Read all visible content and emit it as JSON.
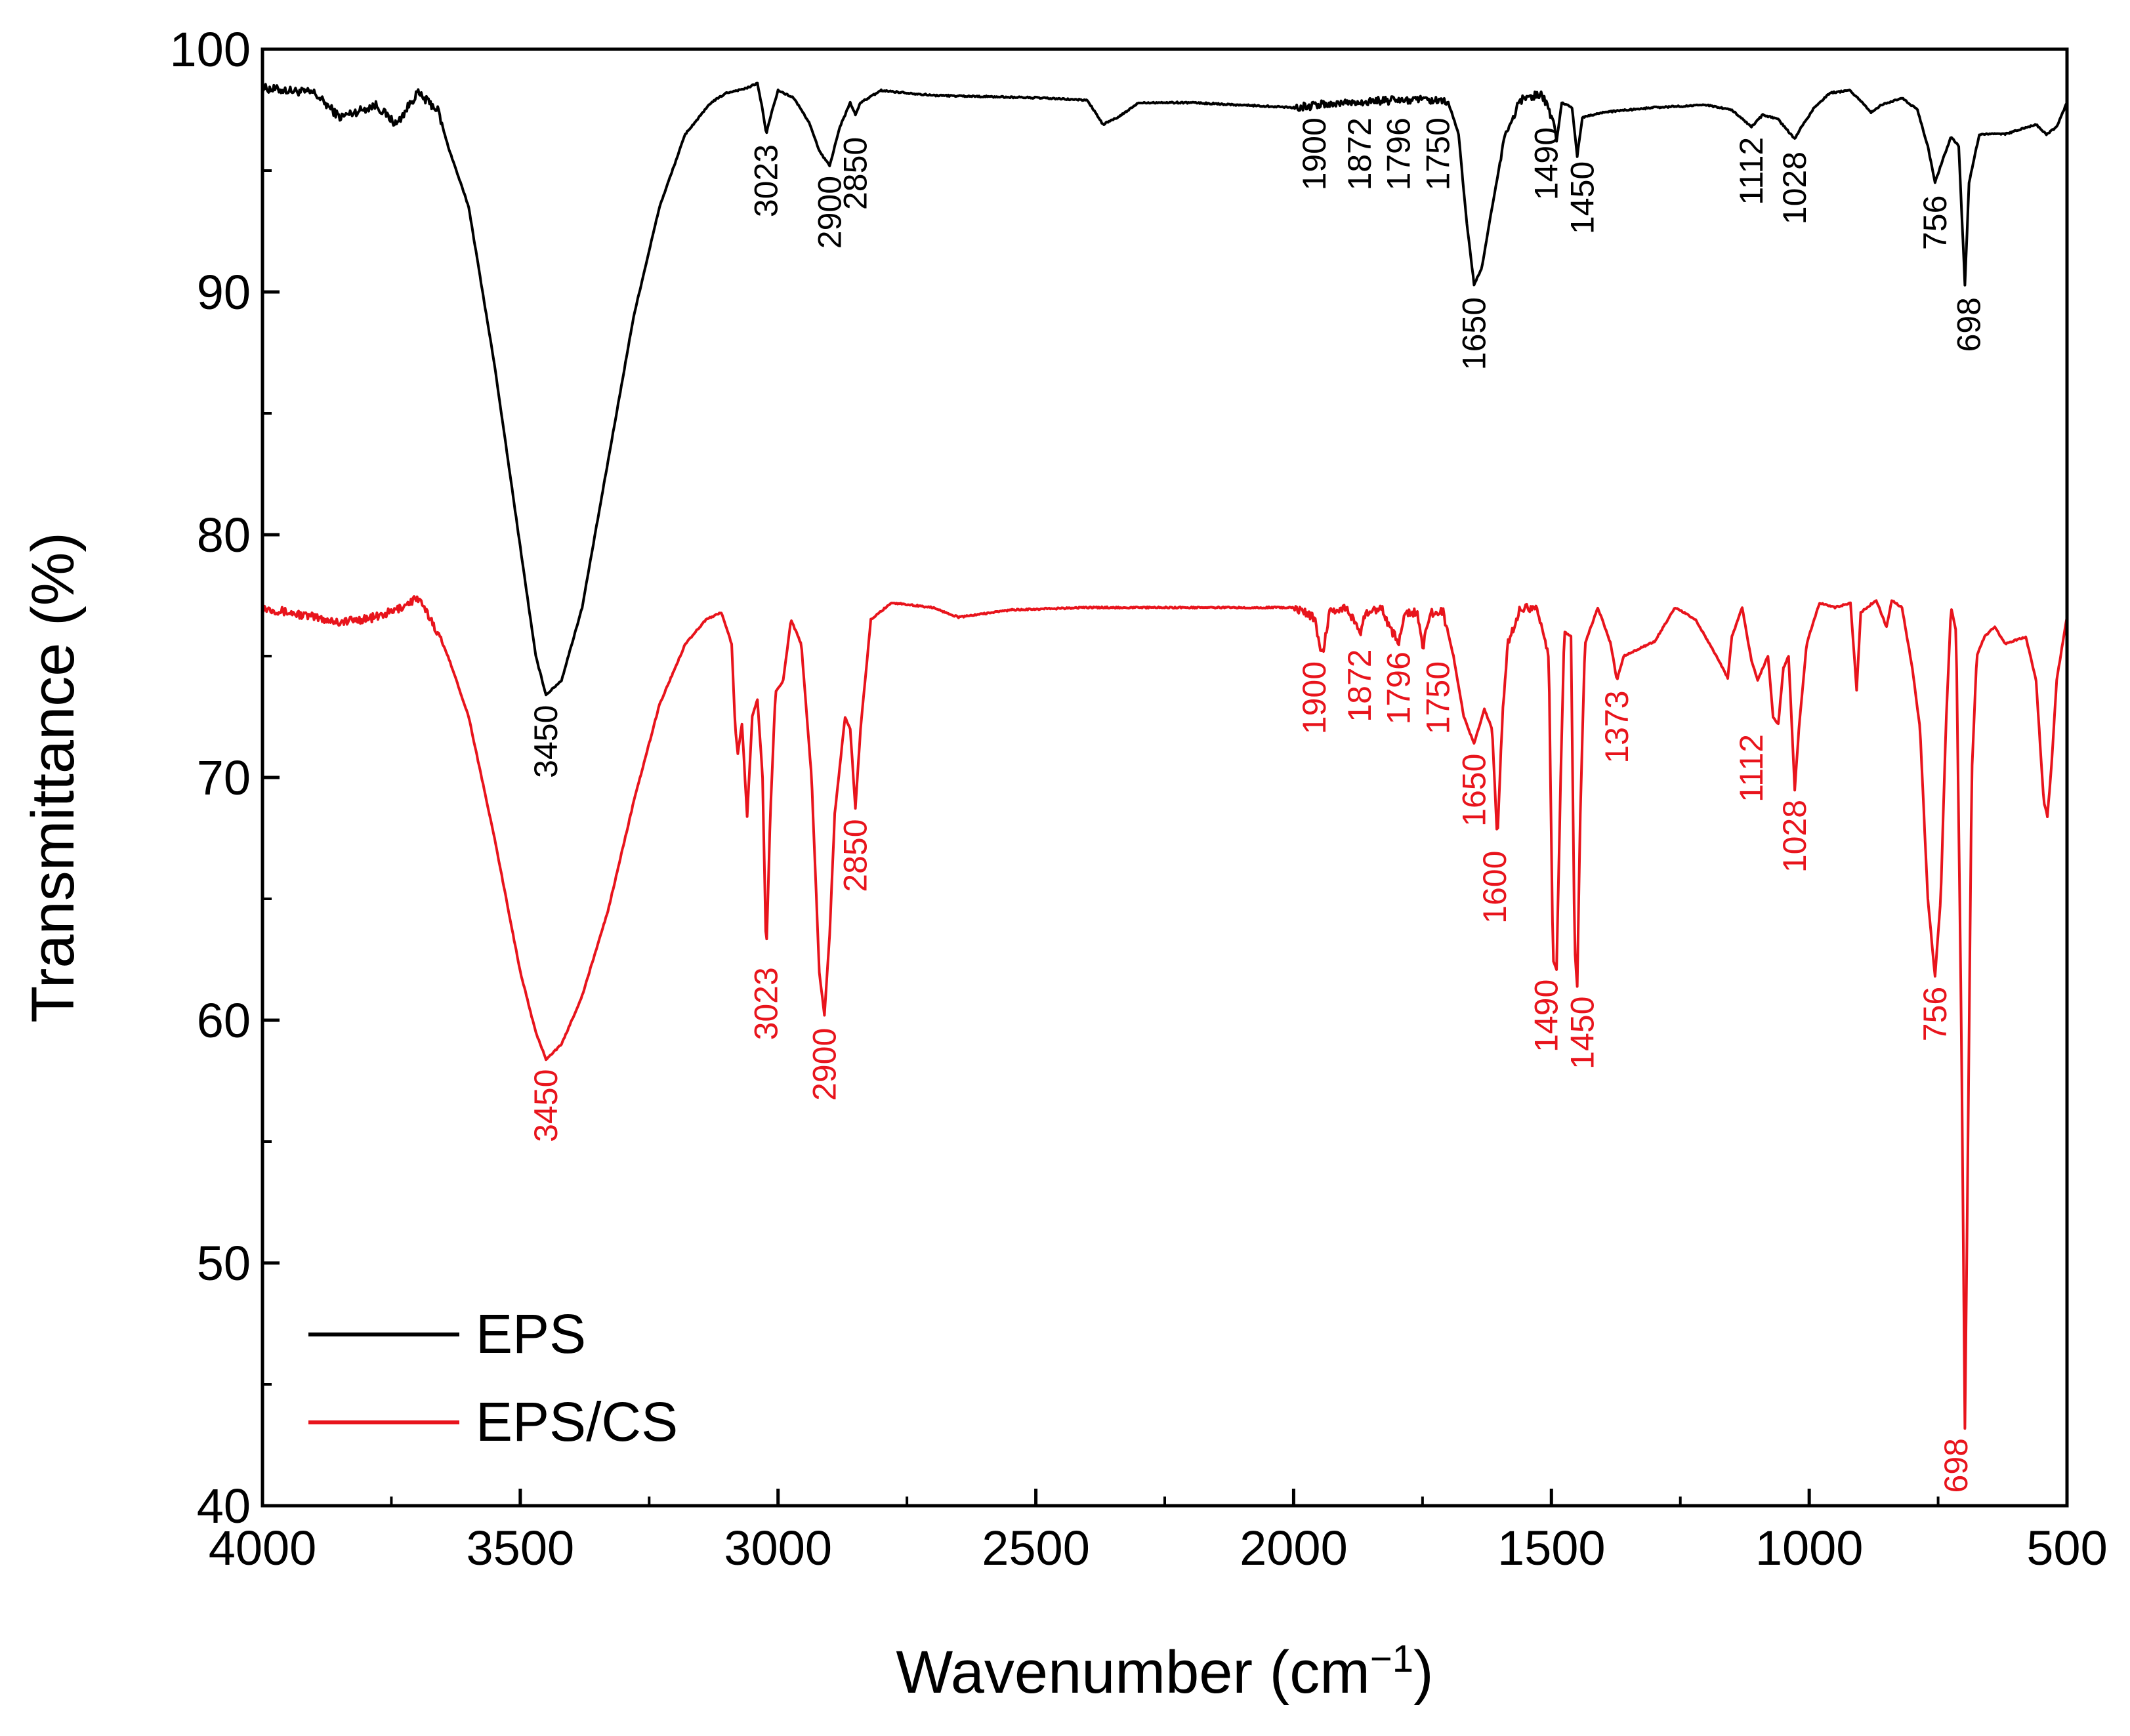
{
  "chart_data": {
    "type": "line",
    "title": "",
    "xlabel": "Wavenumber (cm",
    "xlabel_sup": "−1",
    "xlabel_close": ")",
    "ylabel": "Transmittance (%)",
    "xlim": [
      4000,
      500
    ],
    "ylim": [
      40,
      100
    ],
    "x_ticks": [
      4000,
      3500,
      3000,
      2500,
      2000,
      1500,
      1000,
      500
    ],
    "y_ticks": [
      40,
      50,
      60,
      70,
      80,
      90,
      100
    ],
    "x_tick_labels": [
      "4000",
      "3500",
      "3000",
      "2500",
      "2000",
      "1500",
      "1000",
      "500"
    ],
    "y_tick_labels": [
      "40",
      "50",
      "60",
      "70",
      "80",
      "90",
      "100"
    ],
    "legend": {
      "position": "bottom-left",
      "entries": [
        "EPS",
        "EPS/CS"
      ]
    },
    "series": [
      {
        "name": "EPS",
        "color": "#000000",
        "baseline": 98.0,
        "wave_range": [
          4000,
          500
        ],
        "points": [
          [
            4000,
            98.4
          ],
          [
            3900,
            98.2
          ],
          [
            3850,
            97.2
          ],
          [
            3780,
            97.7
          ],
          [
            3740,
            96.9
          ],
          [
            3700,
            98.2
          ],
          [
            3660,
            97.5
          ],
          [
            3640,
            96.0
          ],
          [
            3600,
            93.5
          ],
          [
            3550,
            87.0
          ],
          [
            3500,
            79.5
          ],
          [
            3470,
            75.0
          ],
          [
            3450,
            73.4
          ],
          [
            3420,
            74.0
          ],
          [
            3380,
            77.0
          ],
          [
            3330,
            83.0
          ],
          [
            3280,
            89.0
          ],
          [
            3230,
            93.5
          ],
          [
            3180,
            96.5
          ],
          [
            3130,
            97.8
          ],
          [
            3100,
            98.2
          ],
          [
            3060,
            98.4
          ],
          [
            3040,
            98.6
          ],
          [
            3030,
            97.5
          ],
          [
            3023,
            96.5
          ],
          [
            3015,
            97.2
          ],
          [
            3000,
            98.3
          ],
          [
            2970,
            98.0
          ],
          [
            2940,
            97.0
          ],
          [
            2920,
            95.8
          ],
          [
            2900,
            95.2
          ],
          [
            2880,
            96.8
          ],
          [
            2860,
            97.8
          ],
          [
            2850,
            97.3
          ],
          [
            2840,
            97.8
          ],
          [
            2800,
            98.3
          ],
          [
            2700,
            98.1
          ],
          [
            2500,
            98.0
          ],
          [
            2400,
            97.9
          ],
          [
            2370,
            96.9
          ],
          [
            2340,
            97.2
          ],
          [
            2300,
            97.8
          ],
          [
            2200,
            97.8
          ],
          [
            2000,
            97.6
          ],
          [
            1900,
            97.8
          ],
          [
            1800,
            97.9
          ],
          [
            1750,
            97.9
          ],
          [
            1700,
            97.8
          ],
          [
            1680,
            96.5
          ],
          [
            1665,
            93.0
          ],
          [
            1650,
            90.3
          ],
          [
            1635,
            91.0
          ],
          [
            1615,
            93.5
          ],
          [
            1590,
            96.5
          ],
          [
            1560,
            97.9
          ],
          [
            1520,
            98.2
          ],
          [
            1495,
            97.0
          ],
          [
            1490,
            96.2
          ],
          [
            1480,
            97.8
          ],
          [
            1460,
            97.6
          ],
          [
            1450,
            95.6
          ],
          [
            1440,
            97.2
          ],
          [
            1400,
            97.4
          ],
          [
            1300,
            97.6
          ],
          [
            1200,
            97.7
          ],
          [
            1150,
            97.5
          ],
          [
            1112,
            96.8
          ],
          [
            1090,
            97.3
          ],
          [
            1060,
            97.1
          ],
          [
            1040,
            96.6
          ],
          [
            1028,
            96.3
          ],
          [
            1015,
            96.8
          ],
          [
            990,
            97.6
          ],
          [
            960,
            98.2
          ],
          [
            920,
            98.3
          ],
          [
            880,
            97.4
          ],
          [
            860,
            97.7
          ],
          [
            820,
            98.0
          ],
          [
            790,
            97.5
          ],
          [
            770,
            96.0
          ],
          [
            756,
            94.5
          ],
          [
            740,
            95.5
          ],
          [
            725,
            96.4
          ],
          [
            710,
            96.0
          ],
          [
            698,
            90.3
          ],
          [
            690,
            94.5
          ],
          [
            670,
            96.5
          ],
          [
            620,
            96.5
          ],
          [
            560,
            96.9
          ],
          [
            540,
            96.5
          ],
          [
            520,
            96.8
          ],
          [
            500,
            97.8
          ]
        ]
      },
      {
        "name": "EPS/CS",
        "color": "#e8141c",
        "baseline": 77.0,
        "wave_range": [
          4000,
          500
        ],
        "points": [
          [
            4000,
            77.0
          ],
          [
            3900,
            76.6
          ],
          [
            3850,
            76.4
          ],
          [
            3780,
            76.6
          ],
          [
            3740,
            76.9
          ],
          [
            3700,
            77.4
          ],
          [
            3670,
            76.4
          ],
          [
            3640,
            75.0
          ],
          [
            3600,
            72.5
          ],
          [
            3550,
            67.5
          ],
          [
            3500,
            62.0
          ],
          [
            3470,
            59.5
          ],
          [
            3450,
            58.4
          ],
          [
            3420,
            59.0
          ],
          [
            3380,
            61.0
          ],
          [
            3330,
            64.5
          ],
          [
            3280,
            69.0
          ],
          [
            3230,
            73.0
          ],
          [
            3180,
            75.5
          ],
          [
            3140,
            76.5
          ],
          [
            3110,
            76.8
          ],
          [
            3090,
            75.5
          ],
          [
            3083,
            72.0
          ],
          [
            3078,
            71.0
          ],
          [
            3070,
            72.2
          ],
          [
            3060,
            68.4
          ],
          [
            3050,
            72.5
          ],
          [
            3040,
            73.2
          ],
          [
            3030,
            70.0
          ],
          [
            3023,
            62.6
          ],
          [
            3015,
            68.5
          ],
          [
            3005,
            73.5
          ],
          [
            2990,
            74.0
          ],
          [
            2975,
            76.5
          ],
          [
            2955,
            75.5
          ],
          [
            2935,
            70.0
          ],
          [
            2920,
            62.0
          ],
          [
            2910,
            60.2
          ],
          [
            2900,
            63.5
          ],
          [
            2890,
            68.5
          ],
          [
            2870,
            72.5
          ],
          [
            2860,
            72.0
          ],
          [
            2850,
            68.7
          ],
          [
            2840,
            72.0
          ],
          [
            2820,
            76.5
          ],
          [
            2780,
            77.2
          ],
          [
            2700,
            77.0
          ],
          [
            2650,
            76.6
          ],
          [
            2550,
            76.9
          ],
          [
            2400,
            77.0
          ],
          [
            2200,
            77.0
          ],
          [
            2000,
            77.0
          ],
          [
            1960,
            76.6
          ],
          [
            1945,
            75.0
          ],
          [
            1930,
            76.8
          ],
          [
            1900,
            77.0
          ],
          [
            1880,
            76.4
          ],
          [
            1872,
            75.8
          ],
          [
            1860,
            76.8
          ],
          [
            1830,
            77.0
          ],
          [
            1810,
            76.0
          ],
          [
            1796,
            75.6
          ],
          [
            1785,
            76.8
          ],
          [
            1760,
            76.8
          ],
          [
            1750,
            75.3
          ],
          [
            1735,
            76.8
          ],
          [
            1710,
            76.8
          ],
          [
            1690,
            75.0
          ],
          [
            1670,
            72.5
          ],
          [
            1650,
            71.4
          ],
          [
            1630,
            72.8
          ],
          [
            1615,
            72.0
          ],
          [
            1605,
            67.4
          ],
          [
            1595,
            72.5
          ],
          [
            1585,
            75.5
          ],
          [
            1560,
            77.0
          ],
          [
            1530,
            77.0
          ],
          [
            1505,
            75.0
          ],
          [
            1497,
            62.5
          ],
          [
            1490,
            62.1
          ],
          [
            1482,
            70.0
          ],
          [
            1475,
            76.0
          ],
          [
            1462,
            75.8
          ],
          [
            1455,
            63.0
          ],
          [
            1450,
            61.4
          ],
          [
            1444,
            68.5
          ],
          [
            1435,
            75.5
          ],
          [
            1410,
            77.0
          ],
          [
            1385,
            75.5
          ],
          [
            1373,
            74.0
          ],
          [
            1360,
            75.0
          ],
          [
            1340,
            75.2
          ],
          [
            1300,
            75.6
          ],
          [
            1260,
            77.0
          ],
          [
            1220,
            76.5
          ],
          [
            1180,
            75.0
          ],
          [
            1158,
            74.1
          ],
          [
            1150,
            75.8
          ],
          [
            1130,
            77.0
          ],
          [
            1112,
            74.8
          ],
          [
            1100,
            74.0
          ],
          [
            1080,
            75.0
          ],
          [
            1070,
            72.5
          ],
          [
            1060,
            72.2
          ],
          [
            1050,
            74.5
          ],
          [
            1040,
            75.0
          ],
          [
            1028,
            69.5
          ],
          [
            1020,
            72.0
          ],
          [
            1005,
            75.5
          ],
          [
            980,
            77.2
          ],
          [
            950,
            77.0
          ],
          [
            920,
            77.2
          ],
          [
            908,
            73.6
          ],
          [
            900,
            76.8
          ],
          [
            870,
            77.3
          ],
          [
            850,
            76.2
          ],
          [
            840,
            77.3
          ],
          [
            820,
            77.0
          ],
          [
            800,
            74.5
          ],
          [
            785,
            72.0
          ],
          [
            770,
            65.0
          ],
          [
            756,
            61.8
          ],
          [
            745,
            65.0
          ],
          [
            735,
            72.0
          ],
          [
            725,
            77.0
          ],
          [
            715,
            76.0
          ],
          [
            705,
            60.0
          ],
          [
            698,
            43.2
          ],
          [
            692,
            55.0
          ],
          [
            685,
            70.0
          ],
          [
            675,
            75.0
          ],
          [
            660,
            75.8
          ],
          [
            640,
            76.2
          ],
          [
            620,
            75.5
          ],
          [
            580,
            75.8
          ],
          [
            560,
            74.0
          ],
          [
            545,
            69.0
          ],
          [
            538,
            68.4
          ],
          [
            530,
            70.5
          ],
          [
            520,
            74.0
          ],
          [
            505,
            76.0
          ],
          [
            500,
            76.6
          ]
        ]
      }
    ],
    "annotations": [
      {
        "series": "EPS",
        "text": "3023",
        "x": 3023,
        "y": 96.3
      },
      {
        "series": "EPS",
        "text": "2900",
        "x": 2900,
        "y": 95.0
      },
      {
        "series": "EPS",
        "text": "2850",
        "x": 2850,
        "y": 96.6
      },
      {
        "series": "EPS",
        "text": "1900",
        "x": 1960,
        "y": 97.4
      },
      {
        "series": "EPS",
        "text": "1872",
        "x": 1872,
        "y": 97.4
      },
      {
        "series": "EPS",
        "text": "1796",
        "x": 1796,
        "y": 97.4
      },
      {
        "series": "EPS",
        "text": "1750",
        "x": 1720,
        "y": 97.4
      },
      {
        "series": "EPS",
        "text": "1650",
        "x": 1650,
        "y": 90.0
      },
      {
        "series": "EPS",
        "text": "1490",
        "x": 1510,
        "y": 97.0
      },
      {
        "series": "EPS",
        "text": "1450",
        "x": 1440,
        "y": 95.6
      },
      {
        "series": "EPS",
        "text": "1112",
        "x": 1112,
        "y": 96.6
      },
      {
        "series": "EPS",
        "text": "1028",
        "x": 1028,
        "y": 96.0
      },
      {
        "series": "EPS",
        "text": "756",
        "x": 756,
        "y": 94.2
      },
      {
        "series": "EPS",
        "text": "698",
        "x": 690,
        "y": 90.0
      },
      {
        "series": "EPS",
        "text": "3450",
        "x": 3450,
        "y": 73.2
      },
      {
        "series": "EPS/CS",
        "text": "3450",
        "x": 3450,
        "y": 58.2
      },
      {
        "series": "EPS/CS",
        "text": "3023",
        "x": 3023,
        "y": 62.4
      },
      {
        "series": "EPS/CS",
        "text": "2900",
        "x": 2910,
        "y": 59.9
      },
      {
        "series": "EPS/CS",
        "text": "2850",
        "x": 2850,
        "y": 68.5
      },
      {
        "series": "EPS/CS",
        "text": "1900",
        "x": 1960,
        "y": 75.0
      },
      {
        "series": "EPS/CS",
        "text": "1872",
        "x": 1872,
        "y": 75.5
      },
      {
        "series": "EPS/CS",
        "text": "1796",
        "x": 1796,
        "y": 75.4
      },
      {
        "series": "EPS/CS",
        "text": "1750",
        "x": 1720,
        "y": 75.0
      },
      {
        "series": "EPS/CS",
        "text": "1650",
        "x": 1650,
        "y": 71.2
      },
      {
        "series": "EPS/CS",
        "text": "1600",
        "x": 1610,
        "y": 67.2
      },
      {
        "series": "EPS/CS",
        "text": "1490",
        "x": 1510,
        "y": 61.9
      },
      {
        "series": "EPS/CS",
        "text": "1450",
        "x": 1440,
        "y": 61.2
      },
      {
        "series": "EPS/CS",
        "text": "1373",
        "x": 1373,
        "y": 73.8
      },
      {
        "series": "EPS/CS",
        "text": "1112",
        "x": 1112,
        "y": 72.0
      },
      {
        "series": "EPS/CS",
        "text": "1028",
        "x": 1028,
        "y": 69.3
      },
      {
        "series": "EPS/CS",
        "text": "756",
        "x": 756,
        "y": 61.6
      },
      {
        "series": "EPS/CS",
        "text": "698",
        "x": 715,
        "y": 43.0
      }
    ]
  }
}
